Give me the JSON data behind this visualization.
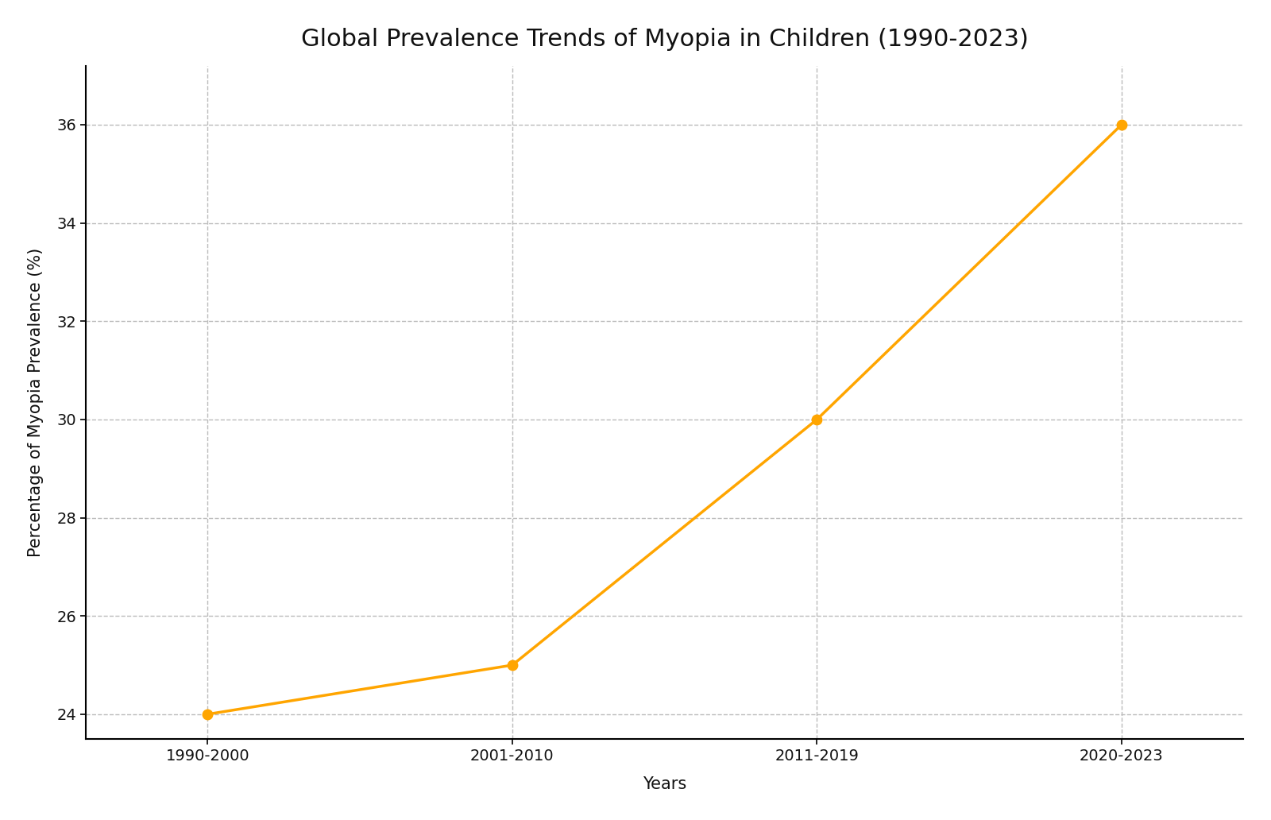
{
  "title": "Global Prevalence Trends of Myopia in Children (1990-2023)",
  "xlabel": "Years",
  "ylabel": "Percentage of Myopia Prevalence (%)",
  "x_labels": [
    "1990-2000",
    "2001-2010",
    "2011-2019",
    "2020-2023"
  ],
  "y_values": [
    24.0,
    25.0,
    30.0,
    36.0
  ],
  "line_color": "#FFA500",
  "marker_color": "#FFA500",
  "marker_style": "o",
  "marker_size": 9,
  "line_width": 2.5,
  "ylim": [
    23.5,
    37.2
  ],
  "yticks": [
    24,
    26,
    28,
    30,
    32,
    34,
    36
  ],
  "background_color": "#ffffff",
  "grid_color": "#bbbbbb",
  "grid_style": "--",
  "title_fontsize": 22,
  "label_fontsize": 15,
  "tick_fontsize": 14
}
